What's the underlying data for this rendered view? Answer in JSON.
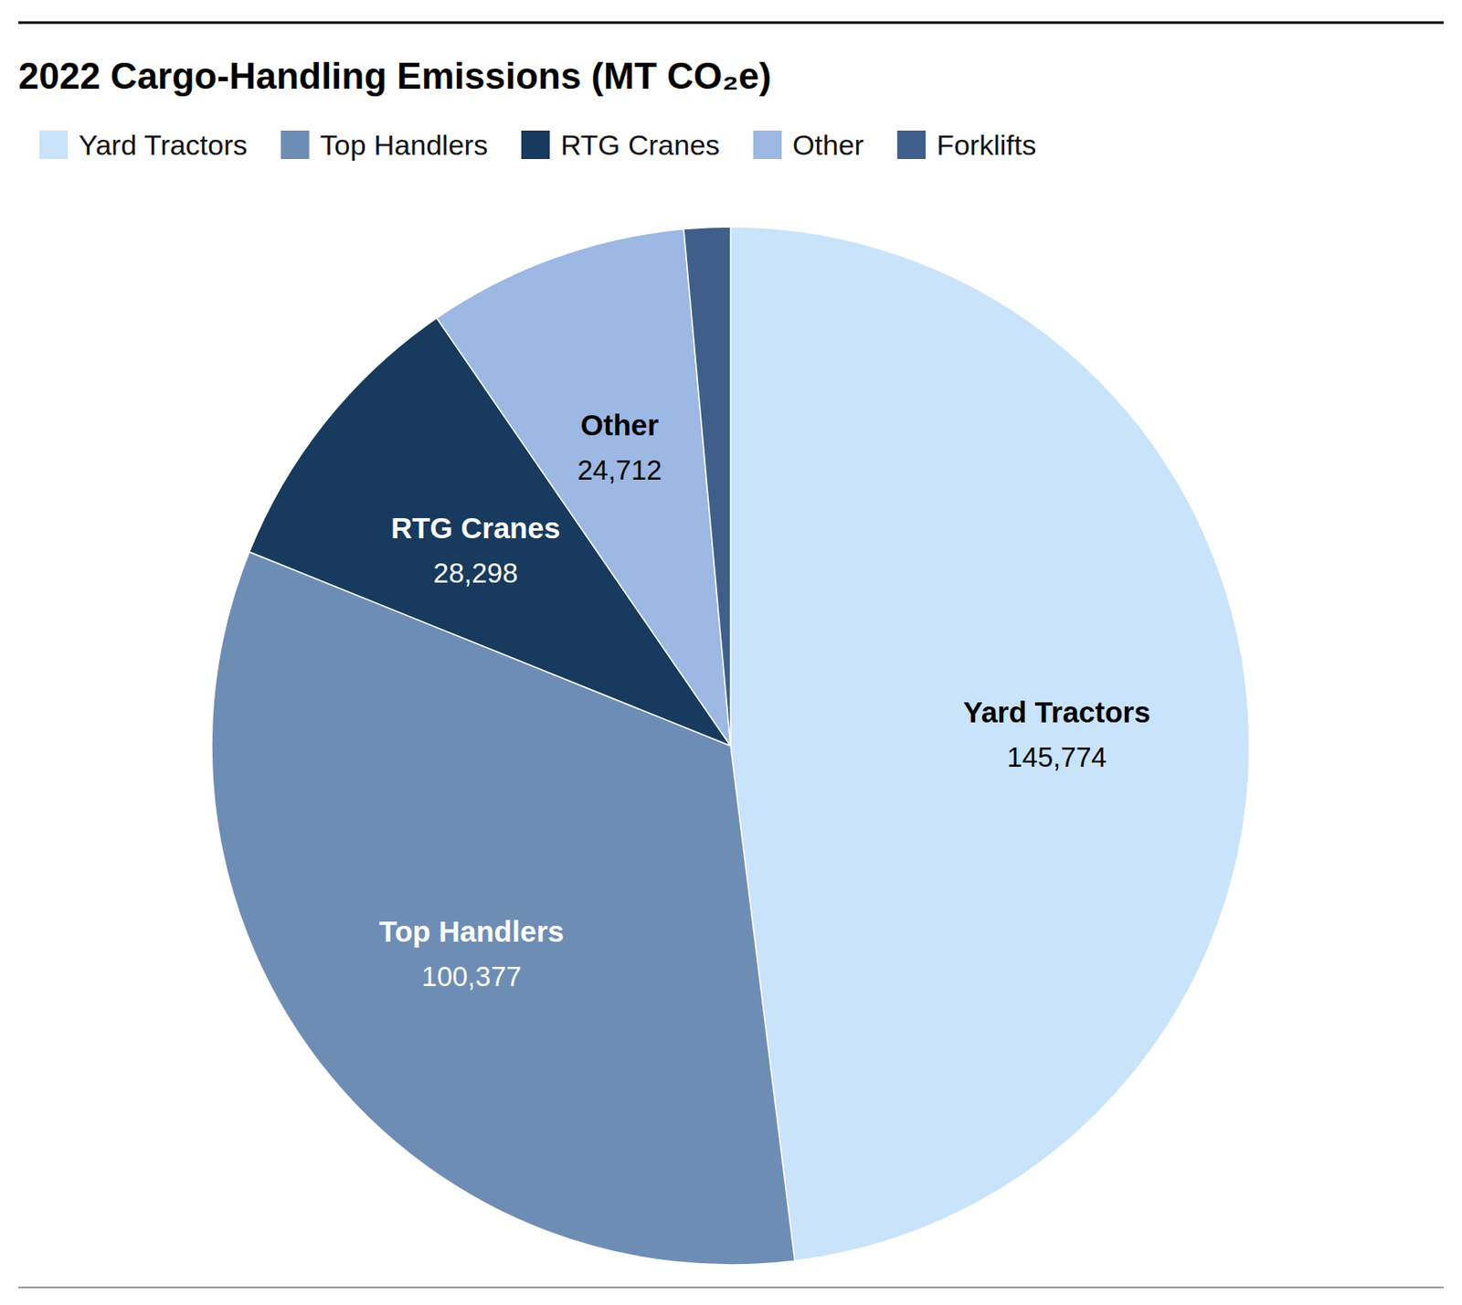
{
  "chart_data": {
    "type": "pie",
    "title": "2022 Cargo-Handling Emissions (MT CO₂e)",
    "categories": [
      "Yard Tractors",
      "Top Handlers",
      "RTG Cranes",
      "Other",
      "Forklifts"
    ],
    "values": [
      145774,
      100377,
      28298,
      24712,
      4370
    ],
    "value_labels": [
      "145,774",
      "100,377",
      "28,298",
      "24,712",
      null
    ],
    "colors": [
      "#c9e4fa",
      "#6e8db5",
      "#173a5e",
      "#9cb8e3",
      "#3f5f8a"
    ],
    "data_labels": true,
    "legend": "top"
  }
}
